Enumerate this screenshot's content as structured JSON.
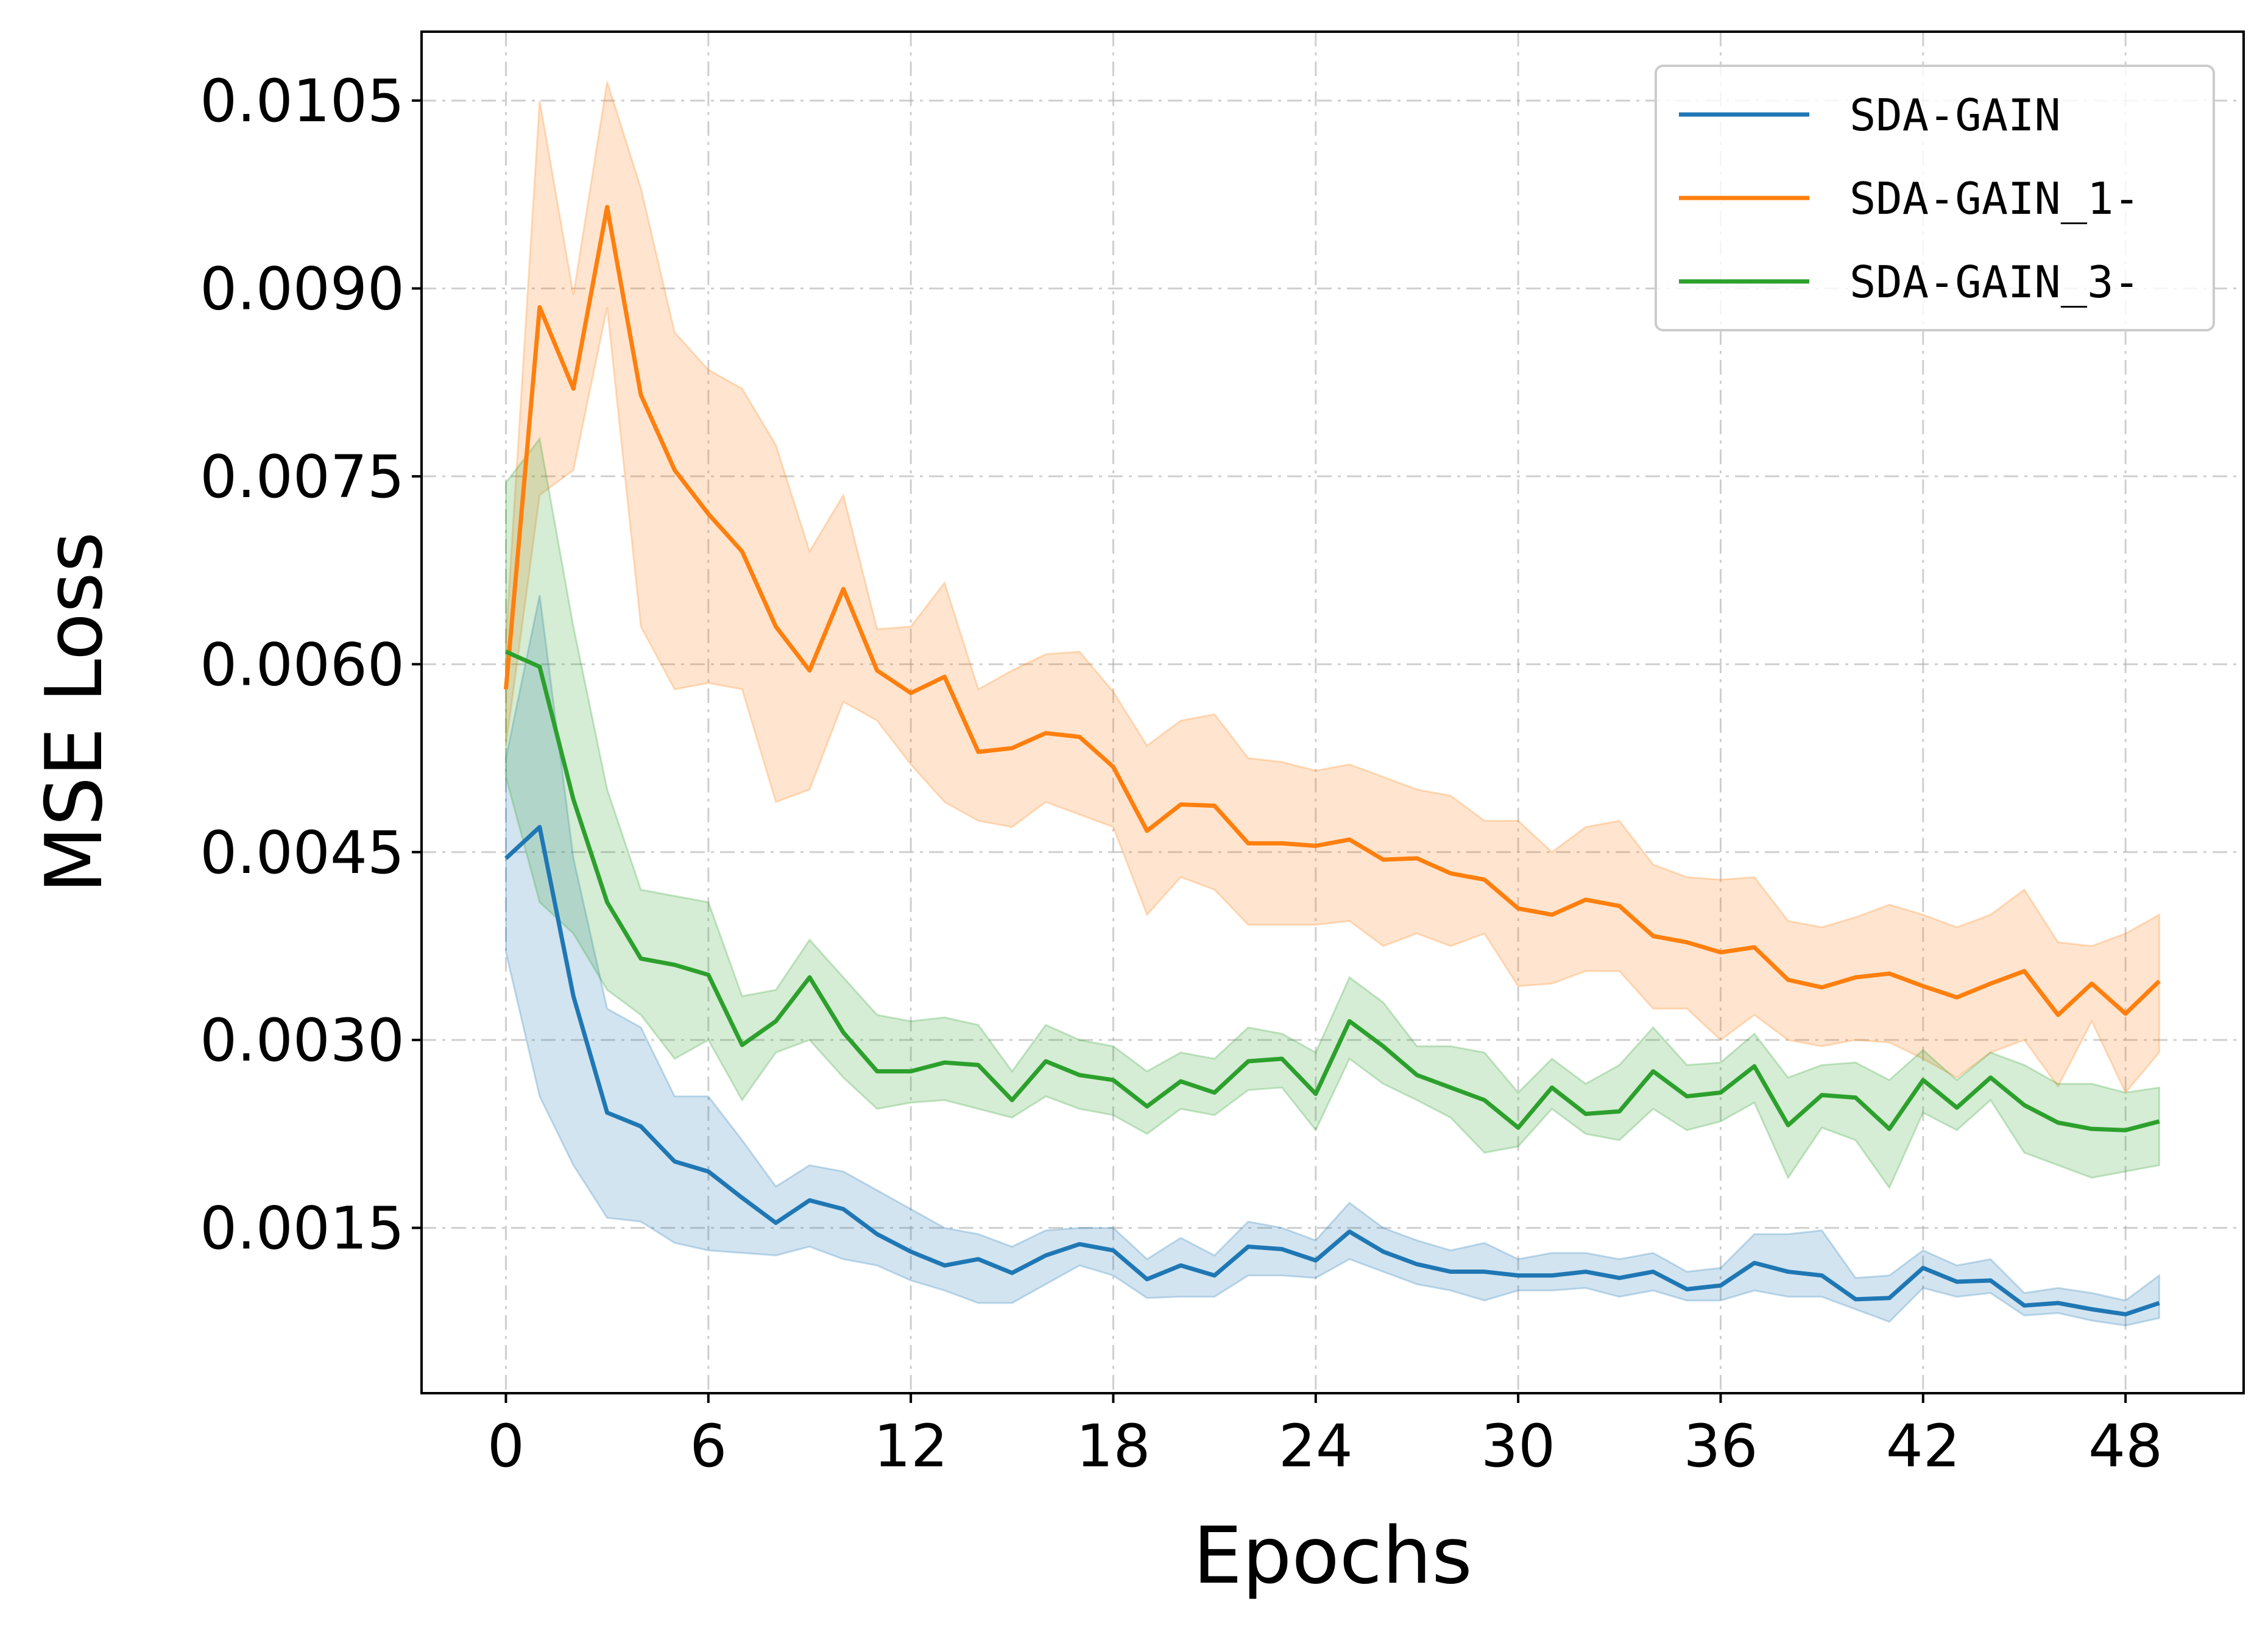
{
  "chart_data": {
    "type": "line",
    "xlabel": "Epochs",
    "ylabel": "MSE Loss",
    "xlim": [
      -2.5,
      51.5
    ],
    "ylim": [
      0.00018,
      0.01105
    ],
    "xticks": [
      0,
      6,
      12,
      18,
      24,
      30,
      36,
      42,
      48
    ],
    "xtick_labels": [
      "0",
      "6",
      "12",
      "18",
      "24",
      "30",
      "36",
      "42",
      "48"
    ],
    "yticks": [
      0.0015,
      0.003,
      0.0045,
      0.006,
      0.0075,
      0.009,
      0.0105
    ],
    "ytick_labels": [
      "0.0015",
      "0.0030",
      "0.0045",
      "0.0060",
      "0.0075",
      "0.0090",
      "0.0105"
    ],
    "grid": true,
    "legend_position": "top-right",
    "x": [
      0,
      1,
      2,
      3,
      4,
      5,
      6,
      7,
      8,
      9,
      10,
      11,
      12,
      13,
      14,
      15,
      16,
      17,
      18,
      19,
      20,
      21,
      22,
      23,
      24,
      25,
      26,
      27,
      28,
      29,
      30,
      31,
      32,
      33,
      34,
      35,
      36,
      37,
      38,
      39,
      40,
      41,
      42,
      43,
      44,
      45,
      46,
      47,
      48,
      49
    ],
    "series": [
      {
        "name": "SDA-GAIN",
        "color": "#1f77b4",
        "values": [
          0.00445,
          0.0047,
          0.00335,
          0.00242,
          0.00231,
          0.00203,
          0.00195,
          0.00174,
          0.00154,
          0.00172,
          0.00165,
          0.00145,
          0.00131,
          0.0012,
          0.00125,
          0.00114,
          0.00128,
          0.00137,
          0.00132,
          0.00109,
          0.0012,
          0.00112,
          0.00135,
          0.00133,
          0.00124,
          0.00147,
          0.00131,
          0.00121,
          0.00115,
          0.00115,
          0.00112,
          0.00112,
          0.00115,
          0.0011,
          0.00115,
          0.00101,
          0.00104,
          0.00122,
          0.00115,
          0.00112,
          0.00093,
          0.00094,
          0.00118,
          0.00107,
          0.00108,
          0.00088,
          0.0009,
          0.00085,
          0.00081,
          0.0009
        ],
        "lower": [
          0.0037,
          0.00255,
          0.002,
          0.00158,
          0.00155,
          0.00138,
          0.00132,
          0.0013,
          0.00128,
          0.00135,
          0.00125,
          0.0012,
          0.00108,
          0.001,
          0.0009,
          0.0009,
          0.00105,
          0.0012,
          0.00112,
          0.00094,
          0.00095,
          0.00095,
          0.00112,
          0.00112,
          0.0011,
          0.00125,
          0.00115,
          0.00105,
          0.001,
          0.00092,
          0.001,
          0.001,
          0.00102,
          0.00095,
          0.001,
          0.00092,
          0.00092,
          0.001,
          0.00095,
          0.00095,
          0.00085,
          0.00075,
          0.00102,
          0.00095,
          0.00098,
          0.0008,
          0.00082,
          0.00076,
          0.00072,
          0.00078
        ],
        "upper": [
          0.00525,
          0.00655,
          0.00445,
          0.00325,
          0.0031,
          0.00255,
          0.00255,
          0.0022,
          0.00183,
          0.002,
          0.00195,
          0.0018,
          0.00165,
          0.0015,
          0.00145,
          0.00135,
          0.00148,
          0.0015,
          0.0015,
          0.00125,
          0.00142,
          0.00128,
          0.00155,
          0.0015,
          0.0014,
          0.0017,
          0.0015,
          0.0014,
          0.00132,
          0.00138,
          0.00125,
          0.0013,
          0.0013,
          0.00125,
          0.0013,
          0.00115,
          0.00118,
          0.00145,
          0.00145,
          0.00148,
          0.0011,
          0.00112,
          0.00132,
          0.0012,
          0.00125,
          0.00098,
          0.00102,
          0.00098,
          0.00092,
          0.00112
        ]
      },
      {
        "name": "SDA-GAIN_1-",
        "color": "#ff7f0e",
        "values": [
          0.0058,
          0.00885,
          0.0082,
          0.00965,
          0.00815,
          0.00755,
          0.0072,
          0.0069,
          0.0063,
          0.00595,
          0.0066,
          0.00595,
          0.00577,
          0.0059,
          0.0053,
          0.00533,
          0.00545,
          0.00542,
          0.00518,
          0.00467,
          0.00488,
          0.00487,
          0.00457,
          0.00457,
          0.00455,
          0.0046,
          0.00444,
          0.00445,
          0.00433,
          0.00428,
          0.00405,
          0.004,
          0.00412,
          0.00407,
          0.00383,
          0.00378,
          0.0037,
          0.00374,
          0.00348,
          0.00342,
          0.0035,
          0.00353,
          0.00343,
          0.00334,
          0.00345,
          0.00355,
          0.0032,
          0.00345,
          0.00321,
          0.00347
        ],
        "lower": [
          0.00535,
          0.00735,
          0.00755,
          0.00885,
          0.0063,
          0.0058,
          0.00585,
          0.0058,
          0.0049,
          0.005,
          0.0057,
          0.00555,
          0.0052,
          0.0049,
          0.00475,
          0.0047,
          0.0049,
          0.0048,
          0.0047,
          0.004,
          0.0043,
          0.0042,
          0.00392,
          0.00392,
          0.00392,
          0.00395,
          0.00375,
          0.00385,
          0.00375,
          0.00385,
          0.00343,
          0.00345,
          0.00355,
          0.00355,
          0.00325,
          0.00325,
          0.003,
          0.0032,
          0.003,
          0.00295,
          0.003,
          0.00298,
          0.00285,
          0.0027,
          0.0029,
          0.003,
          0.00263,
          0.00315,
          0.00258,
          0.0029
        ],
        "upper": [
          0.0062,
          0.0105,
          0.00895,
          0.01065,
          0.0098,
          0.00865,
          0.00835,
          0.0082,
          0.00775,
          0.0069,
          0.00735,
          0.00628,
          0.0063,
          0.00665,
          0.0058,
          0.00595,
          0.00608,
          0.0061,
          0.00578,
          0.00535,
          0.00555,
          0.0056,
          0.00525,
          0.00522,
          0.00515,
          0.0052,
          0.0051,
          0.005,
          0.00495,
          0.00475,
          0.00475,
          0.0045,
          0.0047,
          0.00475,
          0.0044,
          0.0043,
          0.00428,
          0.0043,
          0.00395,
          0.0039,
          0.00398,
          0.00408,
          0.004,
          0.0039,
          0.004,
          0.0042,
          0.00378,
          0.00375,
          0.00385,
          0.004
        ]
      },
      {
        "name": "SDA-GAIN_3-",
        "color": "#2ca02c",
        "values": [
          0.0061,
          0.00598,
          0.00492,
          0.0041,
          0.00365,
          0.0036,
          0.00352,
          0.00296,
          0.00315,
          0.0035,
          0.00306,
          0.00275,
          0.00275,
          0.00282,
          0.0028,
          0.00252,
          0.00283,
          0.00272,
          0.00268,
          0.00247,
          0.00267,
          0.00258,
          0.00283,
          0.00285,
          0.00257,
          0.00315,
          0.00295,
          0.00272,
          0.00262,
          0.00252,
          0.0023,
          0.00262,
          0.00241,
          0.00243,
          0.00275,
          0.00255,
          0.00258,
          0.00279,
          0.00232,
          0.00256,
          0.00254,
          0.00229,
          0.00268,
          0.00246,
          0.0027,
          0.00248,
          0.00234,
          0.00229,
          0.00228,
          0.00235
        ],
        "lower": [
          0.0051,
          0.0041,
          0.00385,
          0.0034,
          0.0032,
          0.00285,
          0.003,
          0.00252,
          0.0029,
          0.003,
          0.0027,
          0.00245,
          0.0025,
          0.00252,
          0.00245,
          0.00238,
          0.00255,
          0.00245,
          0.0024,
          0.00225,
          0.00245,
          0.0024,
          0.0026,
          0.00262,
          0.00228,
          0.00285,
          0.00265,
          0.00252,
          0.00238,
          0.0021,
          0.00215,
          0.00245,
          0.00225,
          0.0022,
          0.00245,
          0.00228,
          0.00235,
          0.0025,
          0.0019,
          0.0023,
          0.0022,
          0.00182,
          0.00242,
          0.00228,
          0.00252,
          0.0021,
          0.002,
          0.0019,
          0.00195,
          0.002
        ],
        "upper": [
          0.00745,
          0.0078,
          0.0063,
          0.005,
          0.0042,
          0.00415,
          0.0041,
          0.00335,
          0.0034,
          0.0038,
          0.0035,
          0.0032,
          0.00315,
          0.00318,
          0.00312,
          0.00275,
          0.00312,
          0.003,
          0.00295,
          0.00275,
          0.0029,
          0.00285,
          0.0031,
          0.00305,
          0.0029,
          0.0035,
          0.0033,
          0.00295,
          0.00295,
          0.0029,
          0.00258,
          0.00285,
          0.00265,
          0.0028,
          0.0031,
          0.0028,
          0.00282,
          0.00305,
          0.0027,
          0.0028,
          0.00282,
          0.00268,
          0.00292,
          0.00268,
          0.0029,
          0.0028,
          0.00265,
          0.00265,
          0.00258,
          0.00262
        ]
      }
    ]
  }
}
